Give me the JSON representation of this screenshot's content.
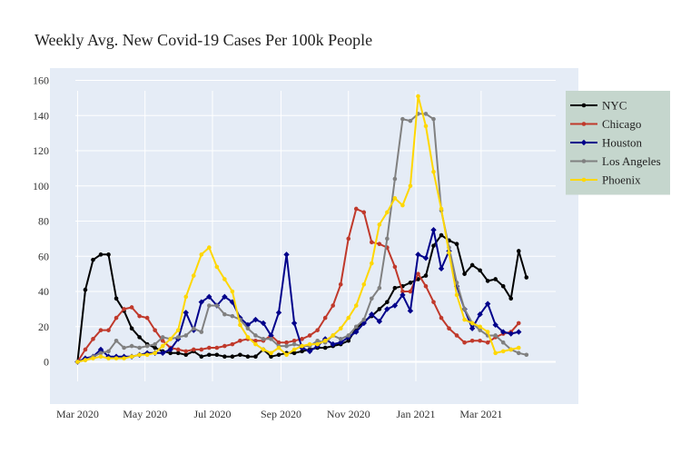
{
  "chart_data": {
    "type": "line",
    "title": "Weekly Avg. New Covid-19 Cases Per 100k People",
    "xlabel": "",
    "ylabel": "",
    "x_start": "2020-03-01",
    "x_step_days": 7,
    "xlim": [
      "2020-02-05",
      "2021-05-28"
    ],
    "ylim": [
      -24,
      167
    ],
    "x_ticks": [
      {
        "date": "2020-03-01",
        "label": "Mar 2020"
      },
      {
        "date": "2020-05-01",
        "label": "May 2020"
      },
      {
        "date": "2020-07-01",
        "label": "Jul 2020"
      },
      {
        "date": "2020-09-01",
        "label": "Sep 2020"
      },
      {
        "date": "2020-11-01",
        "label": "Nov 2020"
      },
      {
        "date": "2021-01-01",
        "label": "Jan 2021"
      },
      {
        "date": "2021-03-01",
        "label": "Mar 2021"
      }
    ],
    "y_ticks": [
      0,
      20,
      40,
      60,
      80,
      100,
      120,
      140,
      160
    ],
    "grid": true,
    "legend_position": "right",
    "background": "#e5ecf6",
    "series": [
      {
        "name": "NYC",
        "color": "#000000",
        "marker": "circle",
        "values": [
          0,
          41,
          58,
          61,
          61,
          36,
          29,
          19,
          14,
          10,
          8,
          6,
          5,
          5,
          4,
          6,
          3,
          4,
          4,
          3,
          3,
          4,
          3,
          3,
          7,
          3,
          4,
          5,
          5,
          6,
          7,
          8,
          8,
          9,
          10,
          12,
          19,
          23,
          26,
          30,
          34,
          42,
          43,
          45,
          47,
          49,
          66,
          72,
          69,
          67,
          50,
          55,
          52,
          46,
          47,
          43,
          36,
          63,
          48
        ]
      },
      {
        "name": "Chicago",
        "color": "#c0392b",
        "marker": "circle",
        "values": [
          0,
          7,
          13,
          18,
          18,
          25,
          30,
          31,
          26,
          25,
          18,
          12,
          8,
          7,
          6,
          7,
          7,
          8,
          8,
          9,
          10,
          12,
          13,
          12,
          12,
          15,
          11,
          11,
          12,
          13,
          15,
          18,
          25,
          32,
          44,
          70,
          87,
          85,
          68,
          67,
          65,
          54,
          40,
          40,
          50,
          43,
          34,
          25,
          19,
          15,
          11,
          12,
          12,
          11,
          14,
          16,
          17,
          22
        ]
      },
      {
        "name": "Houston",
        "color": "#00008b",
        "marker": "diamond",
        "values": [
          0,
          2,
          3,
          7,
          3,
          3,
          3,
          3,
          4,
          5,
          5,
          5,
          7,
          13,
          28,
          18,
          34,
          37,
          32,
          37,
          34,
          25,
          21,
          24,
          22,
          15,
          28,
          61,
          22,
          8,
          6,
          9,
          13,
          10,
          11,
          14,
          17,
          22,
          27,
          23,
          30,
          32,
          38,
          29,
          61,
          59,
          75,
          53,
          63,
          43,
          30,
          19,
          27,
          33,
          21,
          17,
          16,
          17
        ]
      },
      {
        "name": "Los Angeles",
        "color": "#808080",
        "marker": "circle",
        "values": [
          0,
          1,
          3,
          5,
          6,
          12,
          8,
          9,
          8,
          9,
          10,
          14,
          13,
          14,
          15,
          19,
          17,
          32,
          32,
          27,
          26,
          24,
          19,
          15,
          13,
          13,
          9,
          9,
          10,
          9,
          9,
          12,
          11,
          15,
          13,
          15,
          20,
          24,
          36,
          42,
          70,
          104,
          138,
          137,
          141,
          141,
          138,
          86,
          65,
          45,
          30,
          22,
          18,
          15,
          15,
          11,
          7,
          5,
          4
        ]
      },
      {
        "name": "Phoenix",
        "color": "#ffd700",
        "marker": "circle",
        "values": [
          0,
          1,
          2,
          3,
          2,
          2,
          2,
          3,
          4,
          4,
          5,
          9,
          13,
          18,
          37,
          49,
          61,
          65,
          54,
          47,
          40,
          21,
          14,
          10,
          7,
          5,
          8,
          4,
          7,
          9,
          10,
          10,
          12,
          15,
          19,
          25,
          32,
          44,
          56,
          78,
          85,
          93,
          89,
          100,
          151,
          134,
          108,
          87,
          62,
          38,
          24,
          22,
          20,
          17,
          5,
          6,
          7,
          8
        ]
      }
    ]
  }
}
